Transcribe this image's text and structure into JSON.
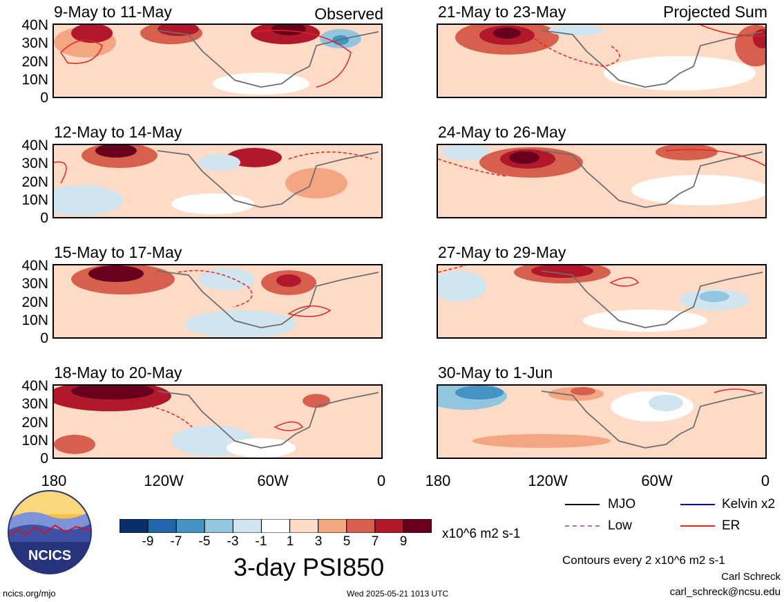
{
  "header": {
    "observed_label": "Observed",
    "projected_label": "Projected Sum"
  },
  "panels": [
    {
      "title": "9-May to 11-May"
    },
    {
      "title": "12-May to 14-May"
    },
    {
      "title": "15-May to 17-May"
    },
    {
      "title": "18-May to 20-May"
    },
    {
      "title": "21-May to 23-May"
    },
    {
      "title": "24-May to 26-May"
    },
    {
      "title": "27-May to 29-May"
    },
    {
      "title": "30-May to 1-Jun"
    }
  ],
  "axes": {
    "lat_labels": [
      "40N",
      "30N",
      "20N",
      "10N",
      "0"
    ],
    "lon_labels": [
      "180",
      "120W",
      "60W",
      "0"
    ]
  },
  "colorbar": {
    "labels": [
      "-9",
      "-7",
      "-5",
      "-3",
      "-1",
      "1",
      "3",
      "5",
      "7",
      "9"
    ],
    "colors": [
      "#08306b",
      "#2166ac",
      "#4393c3",
      "#92c5de",
      "#d1e5f0",
      "#ffffff",
      "#fddbc7",
      "#f4a582",
      "#d6604d",
      "#b2182b",
      "#67001f"
    ],
    "units": "x10^6 m2 s-1"
  },
  "main_title": "3-day PSI850",
  "legend": [
    {
      "label": "MJO",
      "color": "#000000"
    },
    {
      "label": "Kelvin x2",
      "color": "#0000cc"
    },
    {
      "label": "Low",
      "color": "#b469c8"
    },
    {
      "label": "ER",
      "color": "#e8201e"
    }
  ],
  "contour_note": "Contours every 2 x10^6 m2 s-1",
  "credit": {
    "name": "Carl Schreck",
    "email": "carl_schreck@ncsu.edu"
  },
  "footer": {
    "url": "ncics.org/mjo",
    "timestamp": "Wed 2025-05-21 1013 UTC"
  },
  "logo": {
    "text": "NCICS"
  }
}
